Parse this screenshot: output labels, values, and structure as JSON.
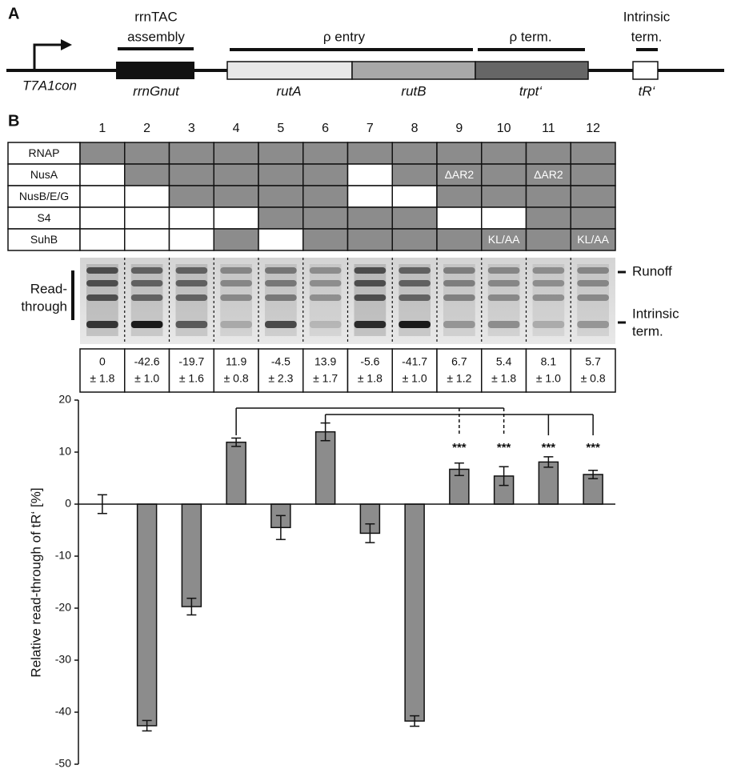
{
  "diagram": {
    "panel": "A",
    "promoter": "T7A1con",
    "segments": [
      "rrnGnut",
      "rutA",
      "rutB",
      "trpt‘",
      "tR‘"
    ],
    "regions": [
      {
        "lines": [
          "rrnTAC",
          "assembly"
        ]
      },
      {
        "lines": [
          "ρ entry"
        ]
      },
      {
        "lines": [
          "ρ term."
        ]
      },
      {
        "lines": [
          "Intrinsic",
          "term."
        ]
      }
    ]
  },
  "table": {
    "panel": "B",
    "lanes": [
      "1",
      "2",
      "3",
      "4",
      "5",
      "6",
      "7",
      "8",
      "9",
      "10",
      "11",
      "12"
    ],
    "rows": [
      {
        "name": "RNAP",
        "cells": [
          true,
          true,
          true,
          true,
          true,
          true,
          true,
          true,
          true,
          true,
          true,
          true
        ]
      },
      {
        "name": "NusA",
        "cells": [
          false,
          true,
          true,
          true,
          true,
          true,
          false,
          true,
          "ΔAR2",
          true,
          "ΔAR2",
          true
        ]
      },
      {
        "name": "NusB/E/G",
        "cells": [
          false,
          false,
          true,
          true,
          true,
          true,
          false,
          false,
          true,
          true,
          true,
          true
        ]
      },
      {
        "name": "S4",
        "cells": [
          false,
          false,
          false,
          false,
          true,
          true,
          true,
          true,
          false,
          false,
          true,
          true
        ]
      },
      {
        "name": "SuhB",
        "cells": [
          false,
          false,
          false,
          true,
          false,
          true,
          true,
          true,
          true,
          "KL/AA",
          true,
          "KL/AA"
        ]
      }
    ]
  },
  "gel": {
    "bracket_label": [
      "Read-",
      "through"
    ],
    "bands": [
      {
        "lines": [
          "Runoff"
        ]
      },
      {
        "lines": [
          "Intrinsic",
          "term."
        ]
      }
    ]
  },
  "chart_data": {
    "type": "bar",
    "ylabel": "Relative read-through of tR‘ [%]",
    "values": [
      0,
      -42.6,
      -19.7,
      11.9,
      -4.5,
      13.9,
      -5.6,
      -41.7,
      6.7,
      5.4,
      8.1,
      5.7
    ],
    "errors": [
      1.8,
      1.0,
      1.6,
      0.8,
      2.3,
      1.7,
      1.8,
      1.0,
      1.2,
      1.8,
      1.0,
      0.8
    ],
    "error_labels": [
      "± 1.8",
      "± 1.0",
      "± 1.6",
      "± 0.8",
      "± 2.3",
      "± 1.7",
      "± 1.8",
      "± 1.0",
      "± 1.2",
      "± 1.8",
      "± 1.0",
      "± 0.8"
    ],
    "color": "#8c8c8c",
    "ylim": [
      -50,
      20
    ],
    "yticks": [
      -50,
      -40,
      -30,
      -20,
      -10,
      0,
      10,
      20
    ],
    "annotations": [
      "***",
      "***",
      "***",
      "***"
    ]
  }
}
